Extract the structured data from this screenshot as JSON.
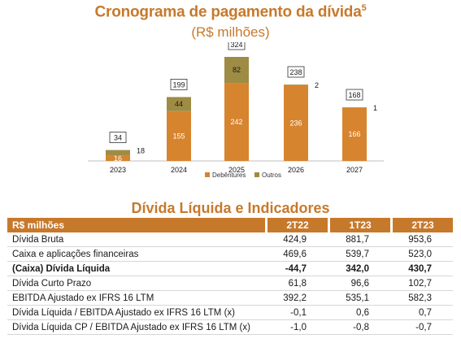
{
  "chart_title": "Cronograma de pagamento da dívida",
  "chart_title_sup": "5",
  "chart_subtitle": "(R$ milhões)",
  "chart_data": {
    "type": "bar",
    "stacked": true,
    "title": "Cronograma de pagamento da dívida",
    "subtitle": "(R$ milhões)",
    "categories": [
      "2023",
      "2024",
      "2025",
      "2026",
      "2027"
    ],
    "series": [
      {
        "name": "Debêntures",
        "color": "#d7842f",
        "values": [
          16,
          155,
          242,
          236,
          166
        ]
      },
      {
        "name": "Outros",
        "color": "#9e8c44",
        "values": [
          18,
          44,
          82,
          2,
          1
        ]
      }
    ],
    "totals": [
      "34",
      "199",
      "324",
      "238",
      "168"
    ],
    "legend_position": "bottom",
    "grid": false
  },
  "table": {
    "title": "Dívida Líquida e Indicadores",
    "header": {
      "label": "R$ milhões",
      "cols": [
        "2T22",
        "1T23",
        "2T23"
      ]
    },
    "rows": [
      {
        "label": "Dívida Bruta",
        "values": [
          "424,9",
          "881,7",
          "953,6"
        ],
        "bold": false
      },
      {
        "label": "Caixa e aplicações financeiras",
        "values": [
          "469,6",
          "539,7",
          "523,0"
        ],
        "bold": false
      },
      {
        "label": "(Caixa) Dívida Líquida",
        "values": [
          "-44,7",
          "342,0",
          "430,7"
        ],
        "bold": true
      },
      {
        "label": "Dívida Curto Prazo",
        "values": [
          "61,8",
          "96,6",
          "102,7"
        ],
        "bold": false
      },
      {
        "label": "EBITDA Ajustado ex IFRS 16 LTM",
        "values": [
          "392,2",
          "535,1",
          "582,3"
        ],
        "bold": false
      },
      {
        "label": "Dívida Líquida / EBITDA Ajustado ex IFRS 16 LTM (x)",
        "values": [
          "-0,1",
          "0,6",
          "0,7"
        ],
        "bold": false
      },
      {
        "label": "Dívida Líquida CP / EBITDA Ajustado ex IFRS 16 LTM (x)",
        "values": [
          "-1,0",
          "-0,8",
          "-0,7"
        ],
        "bold": false
      }
    ]
  }
}
